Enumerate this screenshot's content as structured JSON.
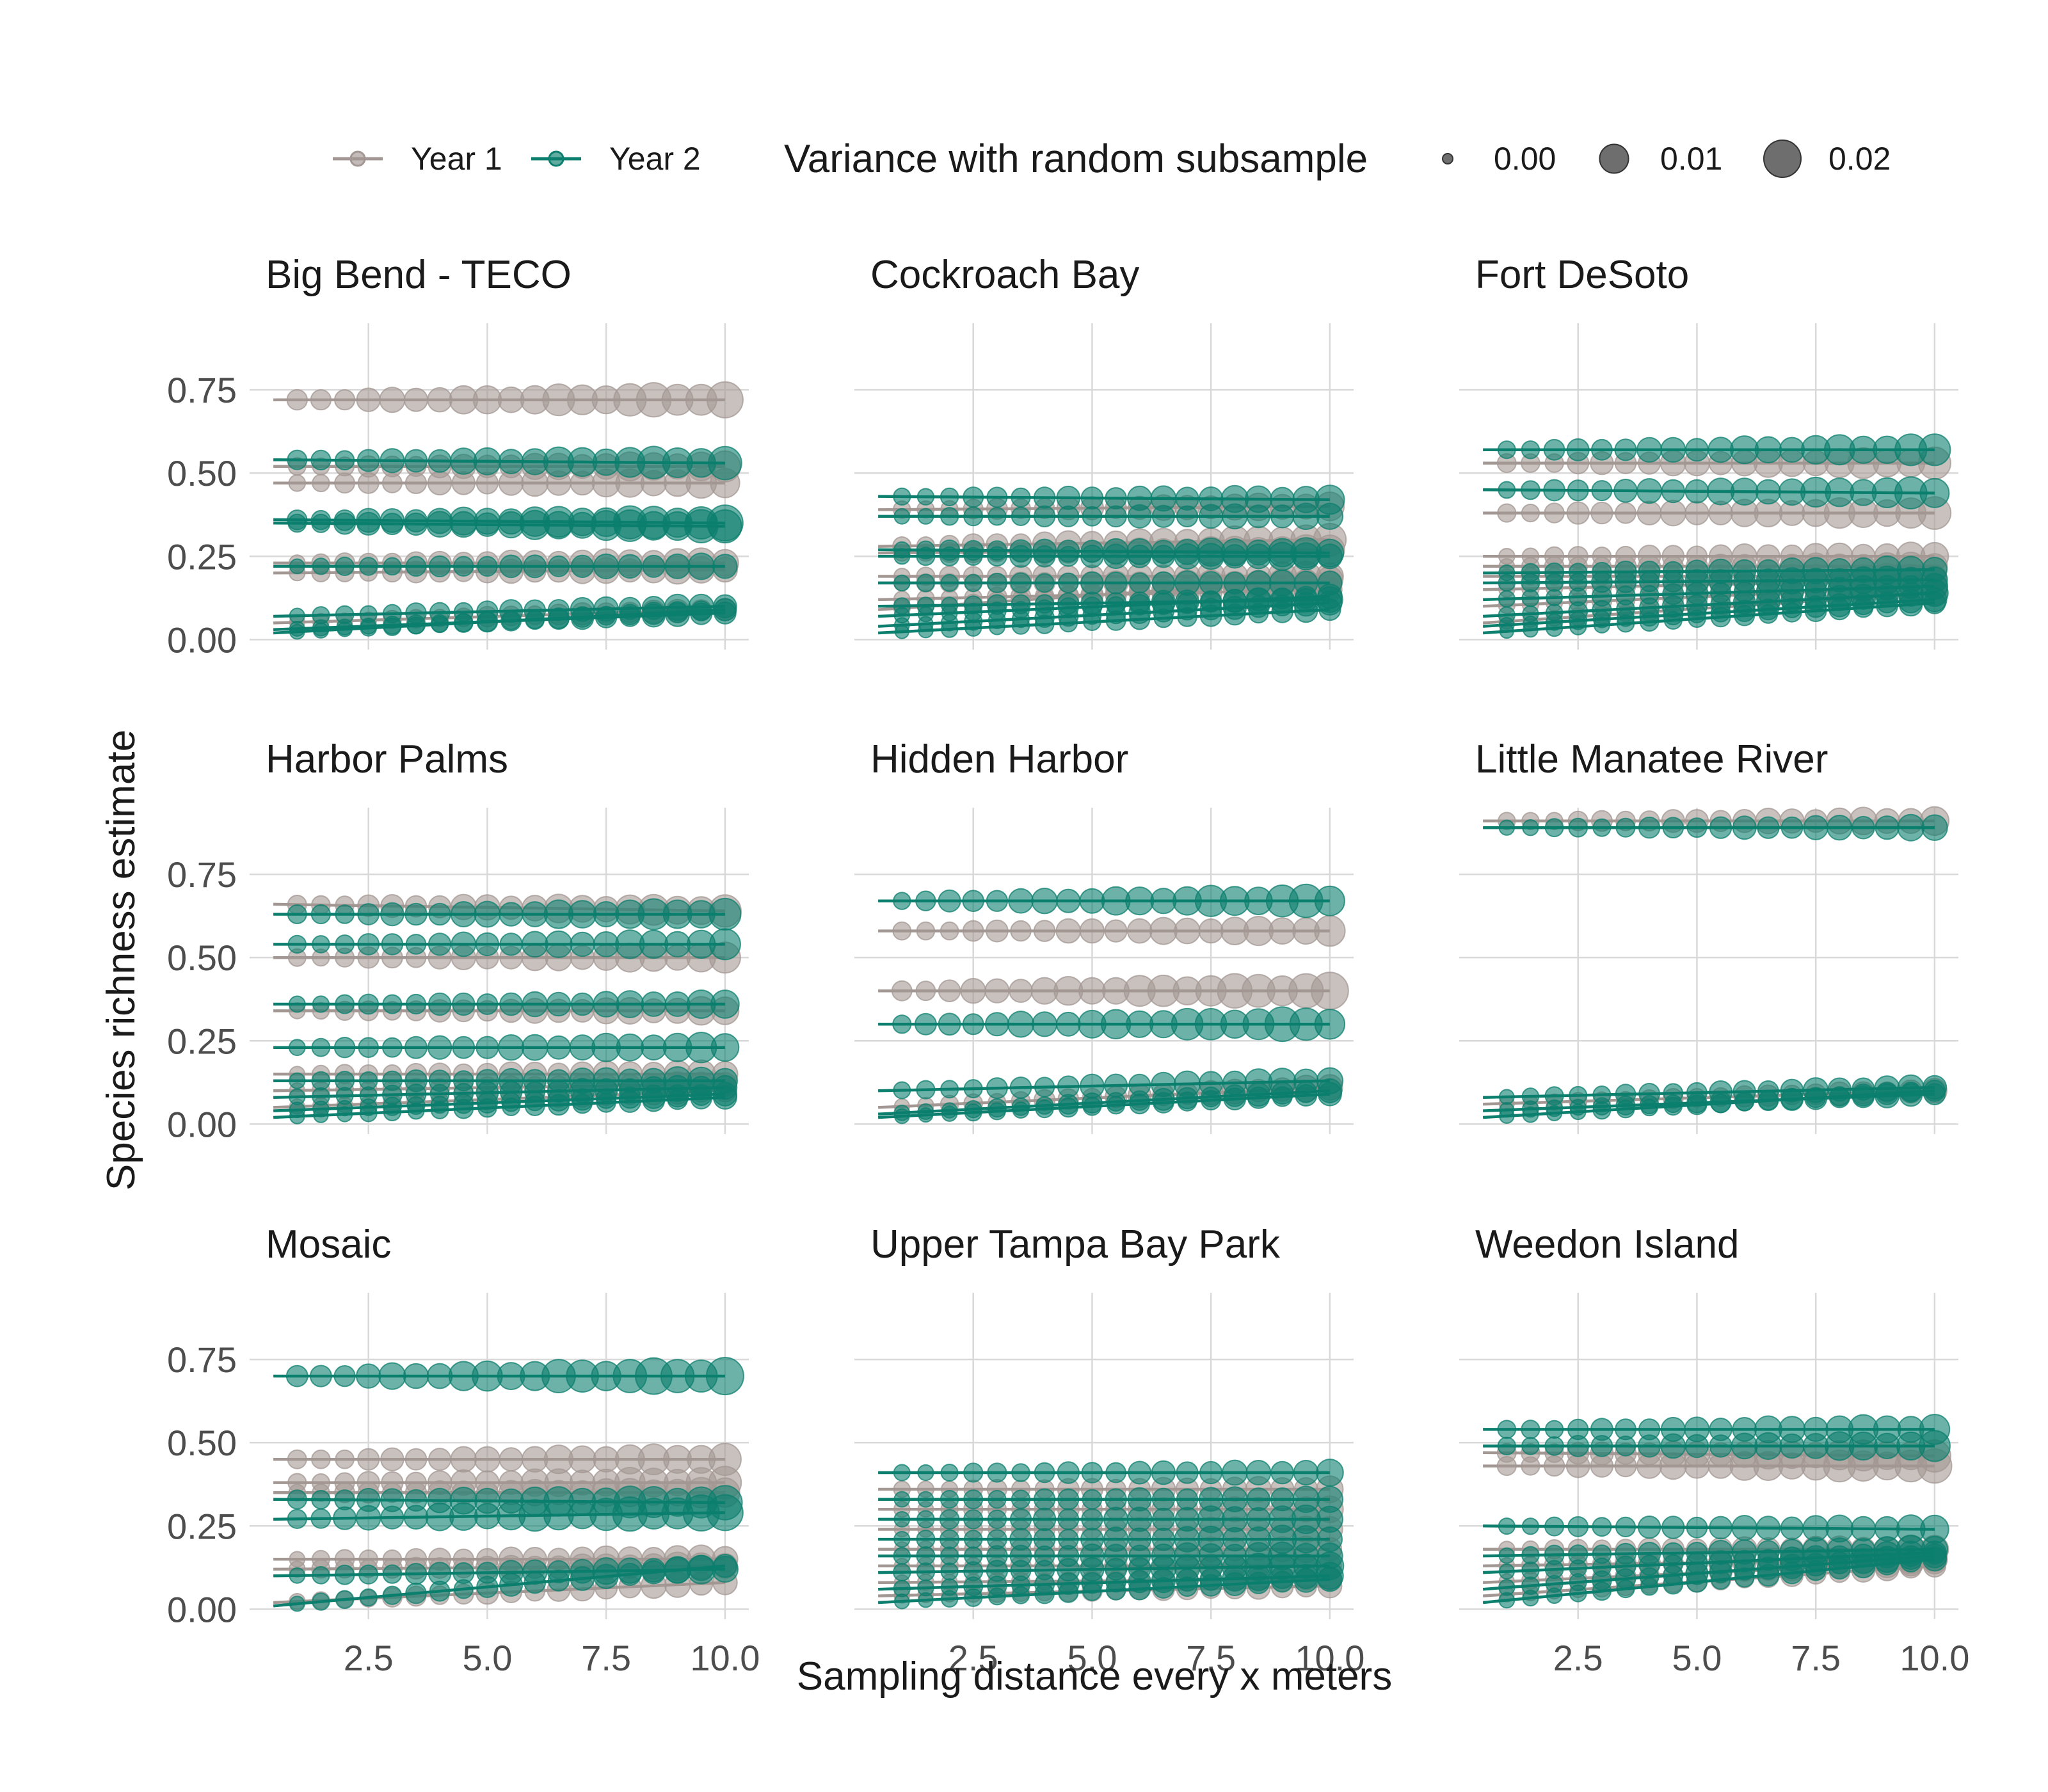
{
  "chart_data": {
    "type": "scatter",
    "xlabel": "Sampling distance every x meters",
    "ylabel": "Species richness estimate",
    "x": [
      0.5,
      1,
      1.5,
      2,
      2.5,
      3,
      3.5,
      4,
      4.5,
      5,
      5.5,
      6,
      6.5,
      7,
      7.5,
      8,
      8.5,
      9,
      9.5,
      10
    ],
    "x_ticks": [
      "2.5",
      "5.0",
      "7.5",
      "10.0"
    ],
    "x_tick_values": [
      2.5,
      5.0,
      7.5,
      10.0
    ],
    "y_ticks": [
      "0.00",
      "0.25",
      "0.50",
      "0.75"
    ],
    "y_tick_values": [
      0.0,
      0.25,
      0.5,
      0.75
    ],
    "xlim": [
      0.0,
      10.5
    ],
    "ylim": [
      -0.03,
      0.95
    ],
    "grid": true,
    "legend": {
      "position": "top",
      "color_entries": [
        {
          "label": "Year 1",
          "color": "#a39793"
        },
        {
          "label": "Year 2",
          "color": "#0c7f6e"
        }
      ],
      "size_title": "Variance with random subsample",
      "size_entries": [
        {
          "label": "0.00",
          "value": 0.0
        },
        {
          "label": "0.01",
          "value": 0.01
        },
        {
          "label": "0.02",
          "value": 0.02
        }
      ]
    },
    "colors": {
      "Year 1": "#a39793",
      "Year 2": "#0c7f6e"
    },
    "facets": [
      {
        "name": "Big Bend - TECO",
        "series": [
          {
            "year": "Year 1",
            "y0": 0.72,
            "y1": 0.72,
            "vmax": 0.019
          },
          {
            "year": "Year 1",
            "y0": 0.52,
            "y1": 0.52,
            "vmax": 0.012
          },
          {
            "year": "Year 1",
            "y0": 0.47,
            "y1": 0.47,
            "vmax": 0.012
          },
          {
            "year": "Year 1",
            "y0": 0.23,
            "y1": 0.23,
            "vmax": 0.012
          },
          {
            "year": "Year 1",
            "y0": 0.2,
            "y1": 0.21,
            "vmax": 0.01
          },
          {
            "year": "Year 1",
            "y0": 0.05,
            "y1": 0.09,
            "vmax": 0.006
          },
          {
            "year": "Year 2",
            "y0": 0.54,
            "y1": 0.53,
            "vmax": 0.016
          },
          {
            "year": "Year 2",
            "y0": 0.36,
            "y1": 0.35,
            "vmax": 0.018
          },
          {
            "year": "Year 2",
            "y0": 0.35,
            "y1": 0.34,
            "vmax": 0.016
          },
          {
            "year": "Year 2",
            "y0": 0.22,
            "y1": 0.22,
            "vmax": 0.008
          },
          {
            "year": "Year 2",
            "y0": 0.07,
            "y1": 0.1,
            "vmax": 0.008
          },
          {
            "year": "Year 2",
            "y0": 0.03,
            "y1": 0.08,
            "vmax": 0.006
          },
          {
            "year": "Year 2",
            "y0": 0.02,
            "y1": 0.09,
            "vmax": 0.005
          }
        ]
      },
      {
        "name": "Cockroach Bay",
        "series": [
          {
            "year": "Year 1",
            "y0": 0.39,
            "y1": 0.4,
            "vmax": 0.01
          },
          {
            "year": "Year 1",
            "y0": 0.28,
            "y1": 0.3,
            "vmax": 0.014
          },
          {
            "year": "Year 1",
            "y0": 0.26,
            "y1": 0.27,
            "vmax": 0.012
          },
          {
            "year": "Year 1",
            "y0": 0.19,
            "y1": 0.19,
            "vmax": 0.012
          },
          {
            "year": "Year 1",
            "y0": 0.17,
            "y1": 0.17,
            "vmax": 0.01
          },
          {
            "year": "Year 1",
            "y0": 0.12,
            "y1": 0.15,
            "vmax": 0.008
          },
          {
            "year": "Year 1",
            "y0": 0.09,
            "y1": 0.18,
            "vmax": 0.008
          },
          {
            "year": "Year 2",
            "y0": 0.43,
            "y1": 0.42,
            "vmax": 0.01
          },
          {
            "year": "Year 2",
            "y0": 0.37,
            "y1": 0.37,
            "vmax": 0.008
          },
          {
            "year": "Year 2",
            "y0": 0.27,
            "y1": 0.26,
            "vmax": 0.012
          },
          {
            "year": "Year 2",
            "y0": 0.25,
            "y1": 0.25,
            "vmax": 0.01
          },
          {
            "year": "Year 2",
            "y0": 0.17,
            "y1": 0.17,
            "vmax": 0.008
          },
          {
            "year": "Year 2",
            "y0": 0.1,
            "y1": 0.12,
            "vmax": 0.008
          },
          {
            "year": "Year 2",
            "y0": 0.07,
            "y1": 0.13,
            "vmax": 0.006
          },
          {
            "year": "Year 2",
            "y0": 0.04,
            "y1": 0.11,
            "vmax": 0.006
          },
          {
            "year": "Year 2",
            "y0": 0.02,
            "y1": 0.09,
            "vmax": 0.005
          }
        ]
      },
      {
        "name": "Fort DeSoto",
        "series": [
          {
            "year": "Year 1",
            "y0": 0.53,
            "y1": 0.53,
            "vmax": 0.014
          },
          {
            "year": "Year 1",
            "y0": 0.38,
            "y1": 0.38,
            "vmax": 0.014
          },
          {
            "year": "Year 1",
            "y0": 0.25,
            "y1": 0.25,
            "vmax": 0.01
          },
          {
            "year": "Year 1",
            "y0": 0.22,
            "y1": 0.22,
            "vmax": 0.01
          },
          {
            "year": "Year 1",
            "y0": 0.19,
            "y1": 0.19,
            "vmax": 0.008
          },
          {
            "year": "Year 1",
            "y0": 0.15,
            "y1": 0.18,
            "vmax": 0.008
          },
          {
            "year": "Year 1",
            "y0": 0.1,
            "y1": 0.16,
            "vmax": 0.008
          },
          {
            "year": "Year 1",
            "y0": 0.05,
            "y1": 0.14,
            "vmax": 0.006
          },
          {
            "year": "Year 2",
            "y0": 0.57,
            "y1": 0.57,
            "vmax": 0.014
          },
          {
            "year": "Year 2",
            "y0": 0.45,
            "y1": 0.44,
            "vmax": 0.014
          },
          {
            "year": "Year 2",
            "y0": 0.2,
            "y1": 0.21,
            "vmax": 0.01
          },
          {
            "year": "Year 2",
            "y0": 0.17,
            "y1": 0.18,
            "vmax": 0.01
          },
          {
            "year": "Year 2",
            "y0": 0.12,
            "y1": 0.16,
            "vmax": 0.008
          },
          {
            "year": "Year 2",
            "y0": 0.07,
            "y1": 0.14,
            "vmax": 0.008
          },
          {
            "year": "Year 2",
            "y0": 0.04,
            "y1": 0.12,
            "vmax": 0.006
          },
          {
            "year": "Year 2",
            "y0": 0.02,
            "y1": 0.11,
            "vmax": 0.005
          }
        ]
      },
      {
        "name": "Harbor Palms",
        "series": [
          {
            "year": "Year 1",
            "y0": 0.66,
            "y1": 0.64,
            "vmax": 0.014
          },
          {
            "year": "Year 1",
            "y0": 0.5,
            "y1": 0.5,
            "vmax": 0.012
          },
          {
            "year": "Year 1",
            "y0": 0.34,
            "y1": 0.34,
            "vmax": 0.01
          },
          {
            "year": "Year 1",
            "y0": 0.15,
            "y1": 0.15,
            "vmax": 0.01
          },
          {
            "year": "Year 1",
            "y0": 0.1,
            "y1": 0.12,
            "vmax": 0.008
          },
          {
            "year": "Year 1",
            "y0": 0.05,
            "y1": 0.1,
            "vmax": 0.006
          },
          {
            "year": "Year 2",
            "y0": 0.63,
            "y1": 0.63,
            "vmax": 0.014
          },
          {
            "year": "Year 2",
            "y0": 0.54,
            "y1": 0.54,
            "vmax": 0.012
          },
          {
            "year": "Year 2",
            "y0": 0.36,
            "y1": 0.36,
            "vmax": 0.01
          },
          {
            "year": "Year 2",
            "y0": 0.23,
            "y1": 0.23,
            "vmax": 0.012
          },
          {
            "year": "Year 2",
            "y0": 0.13,
            "y1": 0.13,
            "vmax": 0.01
          },
          {
            "year": "Year 2",
            "y0": 0.08,
            "y1": 0.11,
            "vmax": 0.008
          },
          {
            "year": "Year 2",
            "y0": 0.04,
            "y1": 0.09,
            "vmax": 0.006
          },
          {
            "year": "Year 2",
            "y0": 0.02,
            "y1": 0.08,
            "vmax": 0.005
          }
        ]
      },
      {
        "name": "Hidden Harbor",
        "series": [
          {
            "year": "Year 1",
            "y0": 0.58,
            "y1": 0.58,
            "vmax": 0.012
          },
          {
            "year": "Year 1",
            "y0": 0.4,
            "y1": 0.4,
            "vmax": 0.02
          },
          {
            "year": "Year 1",
            "y0": 0.05,
            "y1": 0.11,
            "vmax": 0.008
          },
          {
            "year": "Year 2",
            "y0": 0.67,
            "y1": 0.67,
            "vmax": 0.016
          },
          {
            "year": "Year 2",
            "y0": 0.3,
            "y1": 0.3,
            "vmax": 0.018
          },
          {
            "year": "Year 2",
            "y0": 0.1,
            "y1": 0.13,
            "vmax": 0.01
          },
          {
            "year": "Year 2",
            "y0": 0.03,
            "y1": 0.1,
            "vmax": 0.006
          },
          {
            "year": "Year 2",
            "y0": 0.02,
            "y1": 0.09,
            "vmax": 0.005
          }
        ]
      },
      {
        "name": "Little Manatee River",
        "series": [
          {
            "year": "Year 1",
            "y0": 0.91,
            "y1": 0.91,
            "vmax": 0.01
          },
          {
            "year": "Year 1",
            "y0": 0.06,
            "y1": 0.1,
            "vmax": 0.006
          },
          {
            "year": "Year 2",
            "y0": 0.89,
            "y1": 0.89,
            "vmax": 0.008
          },
          {
            "year": "Year 2",
            "y0": 0.08,
            "y1": 0.11,
            "vmax": 0.008
          },
          {
            "year": "Year 2",
            "y0": 0.04,
            "y1": 0.09,
            "vmax": 0.006
          },
          {
            "year": "Year 2",
            "y0": 0.02,
            "y1": 0.1,
            "vmax": 0.005
          }
        ]
      },
      {
        "name": "Mosaic",
        "series": [
          {
            "year": "Year 1",
            "y0": 0.45,
            "y1": 0.45,
            "vmax": 0.014
          },
          {
            "year": "Year 1",
            "y0": 0.38,
            "y1": 0.38,
            "vmax": 0.014
          },
          {
            "year": "Year 1",
            "y0": 0.35,
            "y1": 0.35,
            "vmax": 0.012
          },
          {
            "year": "Year 1",
            "y0": 0.15,
            "y1": 0.15,
            "vmax": 0.01
          },
          {
            "year": "Year 1",
            "y0": 0.12,
            "y1": 0.13,
            "vmax": 0.01
          },
          {
            "year": "Year 1",
            "y0": 0.02,
            "y1": 0.08,
            "vmax": 0.008
          },
          {
            "year": "Year 2",
            "y0": 0.7,
            "y1": 0.7,
            "vmax": 0.022
          },
          {
            "year": "Year 2",
            "y0": 0.33,
            "y1": 0.32,
            "vmax": 0.016
          },
          {
            "year": "Year 2",
            "y0": 0.27,
            "y1": 0.29,
            "vmax": 0.02
          },
          {
            "year": "Year 2",
            "y0": 0.1,
            "y1": 0.12,
            "vmax": 0.01
          },
          {
            "year": "Year 2",
            "y0": 0.01,
            "y1": 0.13,
            "vmax": 0.008
          }
        ]
      },
      {
        "name": "Upper Tampa Bay Park",
        "series": [
          {
            "year": "Year 1",
            "y0": 0.36,
            "y1": 0.36,
            "vmax": 0.008
          },
          {
            "year": "Year 1",
            "y0": 0.3,
            "y1": 0.3,
            "vmax": 0.008
          },
          {
            "year": "Year 1",
            "y0": 0.24,
            "y1": 0.24,
            "vmax": 0.008
          },
          {
            "year": "Year 1",
            "y0": 0.18,
            "y1": 0.18,
            "vmax": 0.008
          },
          {
            "year": "Year 1",
            "y0": 0.13,
            "y1": 0.13,
            "vmax": 0.008
          },
          {
            "year": "Year 1",
            "y0": 0.08,
            "y1": 0.09,
            "vmax": 0.006
          },
          {
            "year": "Year 1",
            "y0": 0.04,
            "y1": 0.07,
            "vmax": 0.006
          },
          {
            "year": "Year 2",
            "y0": 0.41,
            "y1": 0.41,
            "vmax": 0.008
          },
          {
            "year": "Year 2",
            "y0": 0.33,
            "y1": 0.33,
            "vmax": 0.008
          },
          {
            "year": "Year 2",
            "y0": 0.27,
            "y1": 0.27,
            "vmax": 0.01
          },
          {
            "year": "Year 2",
            "y0": 0.21,
            "y1": 0.21,
            "vmax": 0.01
          },
          {
            "year": "Year 2",
            "y0": 0.16,
            "y1": 0.16,
            "vmax": 0.01
          },
          {
            "year": "Year 2",
            "y0": 0.11,
            "y1": 0.13,
            "vmax": 0.01
          },
          {
            "year": "Year 2",
            "y0": 0.06,
            "y1": 0.1,
            "vmax": 0.008
          },
          {
            "year": "Year 2",
            "y0": 0.02,
            "y1": 0.09,
            "vmax": 0.006
          }
        ]
      },
      {
        "name": "Weedon Island",
        "series": [
          {
            "year": "Year 1",
            "y0": 0.47,
            "y1": 0.46,
            "vmax": 0.014
          },
          {
            "year": "Year 1",
            "y0": 0.43,
            "y1": 0.43,
            "vmax": 0.016
          },
          {
            "year": "Year 1",
            "y0": 0.18,
            "y1": 0.18,
            "vmax": 0.01
          },
          {
            "year": "Year 1",
            "y0": 0.13,
            "y1": 0.15,
            "vmax": 0.01
          },
          {
            "year": "Year 1",
            "y0": 0.08,
            "y1": 0.14,
            "vmax": 0.008
          },
          {
            "year": "Year 1",
            "y0": 0.04,
            "y1": 0.13,
            "vmax": 0.006
          },
          {
            "year": "Year 2",
            "y0": 0.54,
            "y1": 0.54,
            "vmax": 0.012
          },
          {
            "year": "Year 2",
            "y0": 0.49,
            "y1": 0.49,
            "vmax": 0.012
          },
          {
            "year": "Year 2",
            "y0": 0.25,
            "y1": 0.24,
            "vmax": 0.01
          },
          {
            "year": "Year 2",
            "y0": 0.16,
            "y1": 0.18,
            "vmax": 0.01
          },
          {
            "year": "Year 2",
            "y0": 0.11,
            "y1": 0.17,
            "vmax": 0.008
          },
          {
            "year": "Year 2",
            "y0": 0.06,
            "y1": 0.16,
            "vmax": 0.008
          },
          {
            "year": "Year 2",
            "y0": 0.02,
            "y1": 0.15,
            "vmax": 0.006
          }
        ]
      }
    ]
  }
}
